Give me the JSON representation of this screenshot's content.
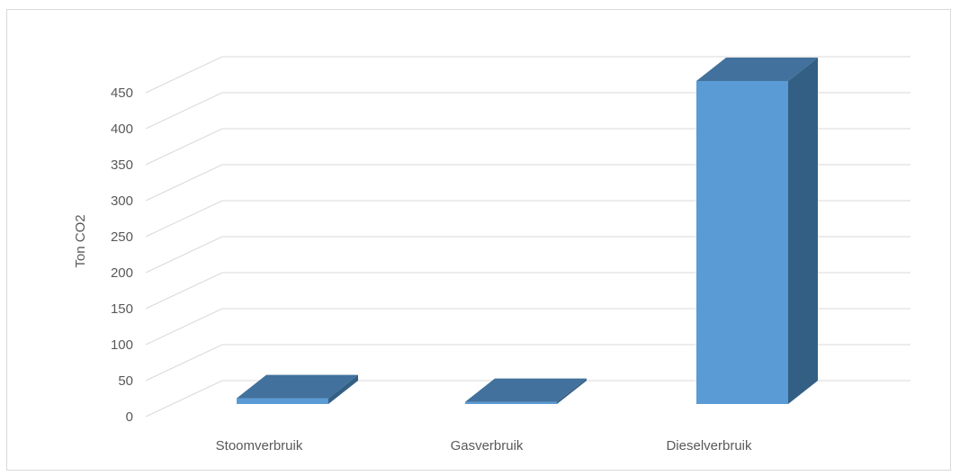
{
  "chart_data": {
    "type": "bar",
    "style": "3d-column",
    "categories": [
      "Stoomverbruik",
      "Gasverbruik",
      "Dieselverbruik"
    ],
    "series": [
      {
        "values": [
          8,
          3,
          448
        ]
      }
    ],
    "title": "",
    "xlabel": "",
    "ylabel": "Ton CO2",
    "ylim": [
      0,
      450
    ],
    "yticks": [
      "0",
      "50",
      "100",
      "150",
      "200",
      "250",
      "300",
      "350",
      "400",
      "450"
    ],
    "grid": true,
    "legend": "none",
    "colors": {
      "front": "#5b9bd5",
      "top": "#41719c",
      "side": "#345f85"
    }
  }
}
